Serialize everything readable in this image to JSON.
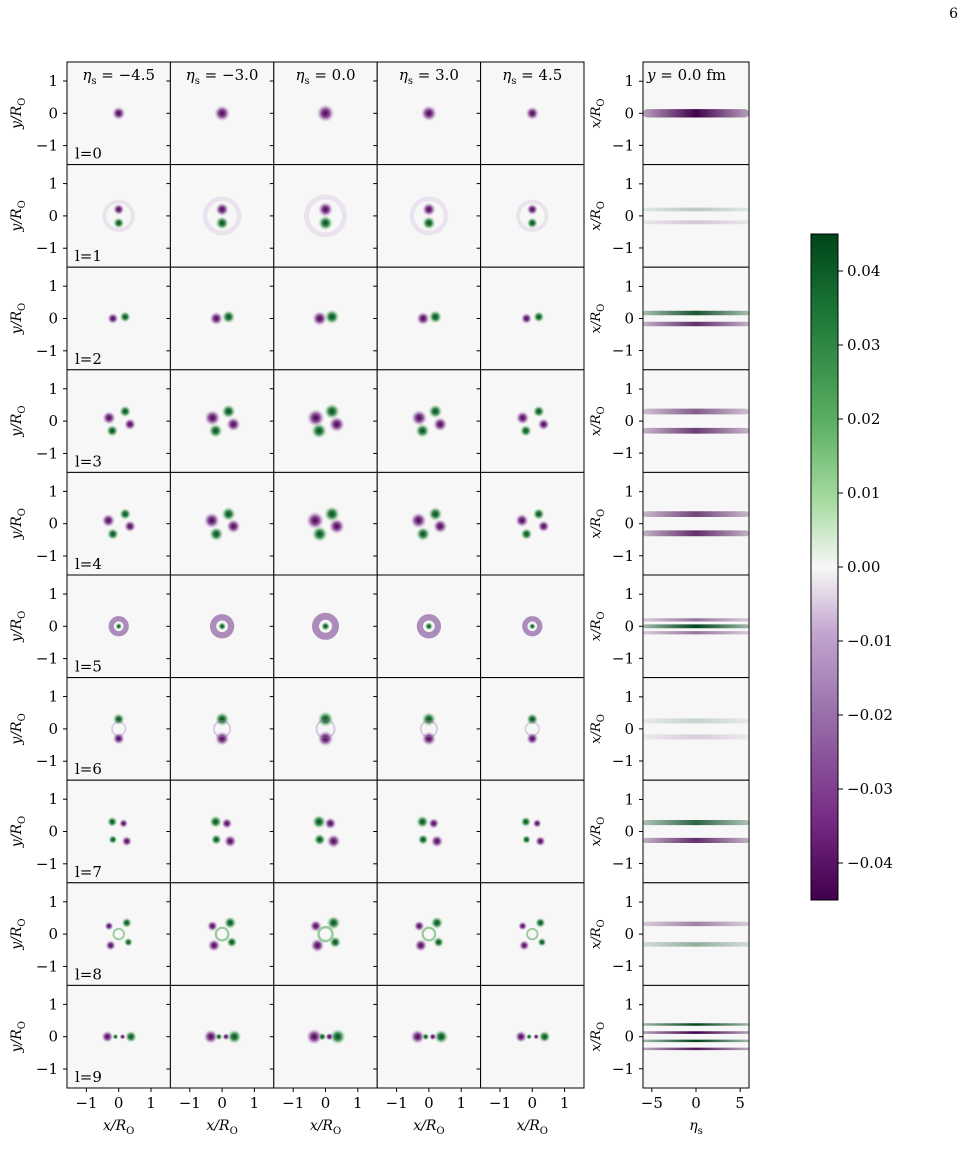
{
  "page_number": "6",
  "chart_data": {
    "type": "heatmap",
    "columns": [
      {
        "label": "η_s = −4.5",
        "eta_s": -4.5,
        "amp": 0.75
      },
      {
        "label": "η_s = −3.0",
        "eta_s": -3.0,
        "amp": 0.9
      },
      {
        "label": "η_s = 0.0",
        "eta_s": 0.0,
        "amp": 1.0
      },
      {
        "label": "η_s = 3.0",
        "eta_s": 3.0,
        "amp": 0.9
      },
      {
        "label": "η_s = 4.5",
        "eta_s": 4.5,
        "amp": 0.75
      }
    ],
    "rows": [
      "l=0",
      "l=1",
      "l=2",
      "l=3",
      "l=4",
      "l=5",
      "l=6",
      "l=7",
      "l=8",
      "l=9"
    ],
    "transverse": {
      "xlabel": "x/R_O",
      "ylabel": "y/R_O",
      "xlim": [
        -1.6,
        1.6
      ],
      "ylim": [
        -1.6,
        1.6
      ],
      "xticks": [
        -1,
        0,
        1
      ],
      "yticks": [
        1,
        0,
        -1
      ],
      "xtick_labels": [
        "−1",
        "0",
        "1"
      ],
      "ytick_labels": [
        "1",
        "0",
        "−1"
      ]
    },
    "slice": {
      "title": "y = 0.0 fm",
      "xlabel": "η_s",
      "ylabel": "x/R_O",
      "xlim": [
        -6,
        6
      ],
      "ylim": [
        -1.6,
        1.6
      ],
      "xticks": [
        -5,
        0,
        5
      ],
      "xtick_labels": [
        "−5",
        "0",
        "5"
      ],
      "yticks": [
        1,
        0,
        -1
      ],
      "ytick_labels": [
        "1",
        "0",
        "−1"
      ],
      "bands": [
        [
          {
            "pos": 0.0,
            "amp": -0.045,
            "w": 0.13
          }
        ],
        [
          {
            "pos": 0.2,
            "amp": 0.008,
            "w": 0.06
          },
          {
            "pos": -0.2,
            "amp": -0.006,
            "w": 0.06
          }
        ],
        [
          {
            "pos": 0.17,
            "amp": 0.04,
            "w": 0.07
          },
          {
            "pos": -0.17,
            "amp": -0.035,
            "w": 0.07
          }
        ],
        [
          {
            "pos": 0.3,
            "amp": -0.025,
            "w": 0.09
          },
          {
            "pos": -0.3,
            "amp": -0.032,
            "w": 0.09
          }
        ],
        [
          {
            "pos": 0.3,
            "amp": -0.03,
            "w": 0.09
          },
          {
            "pos": -0.3,
            "amp": -0.035,
            "w": 0.09
          }
        ],
        [
          {
            "pos": 0.0,
            "amp": 0.045,
            "w": 0.06
          },
          {
            "pos": 0.2,
            "amp": -0.02,
            "w": 0.05
          },
          {
            "pos": -0.2,
            "amp": -0.02,
            "w": 0.05
          }
        ],
        [
          {
            "pos": 0.25,
            "amp": 0.006,
            "w": 0.08
          },
          {
            "pos": -0.25,
            "amp": -0.005,
            "w": 0.08
          }
        ],
        [
          {
            "pos": 0.28,
            "amp": 0.035,
            "w": 0.08
          },
          {
            "pos": -0.28,
            "amp": -0.035,
            "w": 0.08
          }
        ],
        [
          {
            "pos": 0.32,
            "amp": -0.018,
            "w": 0.07
          },
          {
            "pos": -0.32,
            "amp": 0.015,
            "w": 0.07
          }
        ],
        [
          {
            "pos": 0.38,
            "amp": 0.045,
            "w": 0.04
          },
          {
            "pos": 0.13,
            "amp": -0.045,
            "w": 0.04
          },
          {
            "pos": -0.13,
            "amp": 0.045,
            "w": 0.04
          },
          {
            "pos": -0.38,
            "amp": -0.04,
            "w": 0.04
          }
        ]
      ]
    },
    "colorbar": {
      "vmin": -0.045,
      "vmax": 0.045,
      "ticks": [
        0.04,
        0.03,
        0.02,
        0.01,
        0.0,
        -0.01,
        -0.02,
        -0.03,
        -0.04
      ],
      "tick_labels": [
        "0.04",
        "0.03",
        "0.02",
        "0.01",
        "0.00",
        "−0.01",
        "−0.02",
        "−0.03",
        "−0.04"
      ],
      "colormap": "PRGn",
      "colors": {
        "neg_end": "#40004b",
        "neg_mid": "#9970ab",
        "center": "#f7f7f7",
        "pos_mid": "#5aae61",
        "pos_end": "#00441b"
      }
    }
  }
}
